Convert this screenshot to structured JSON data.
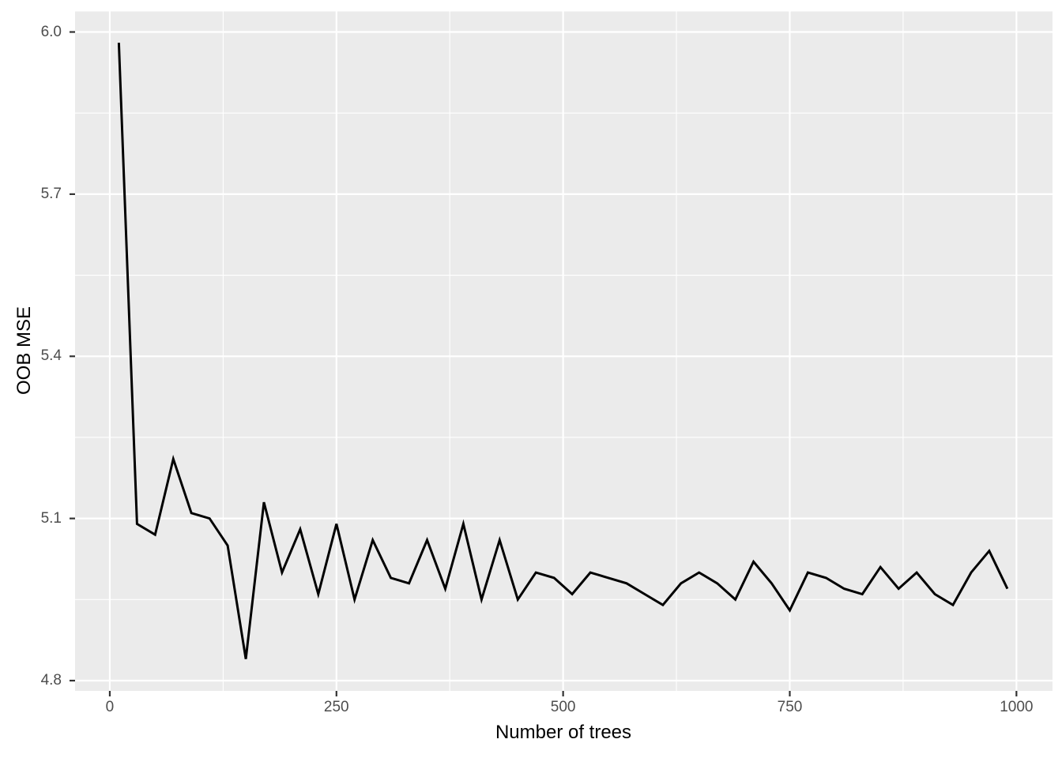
{
  "figure": {
    "background": "#FFFFFF"
  },
  "chart_data": {
    "type": "line",
    "title": "",
    "xlabel": "Number of trees",
    "ylabel": "OOB MSE",
    "legend_position": "none",
    "grid": true,
    "series": [
      {
        "name": "OOB MSE",
        "x": [
          10,
          30,
          50,
          70,
          90,
          110,
          130,
          150,
          170,
          190,
          210,
          230,
          250,
          270,
          290,
          310,
          330,
          350,
          370,
          390,
          410,
          430,
          450,
          470,
          490,
          510,
          530,
          550,
          570,
          590,
          610,
          630,
          650,
          670,
          690,
          710,
          730,
          750,
          770,
          790,
          810,
          830,
          850,
          870,
          890,
          910,
          930,
          950,
          970,
          990
        ],
        "y": [
          5.98,
          5.09,
          5.07,
          5.21,
          5.11,
          5.1,
          5.05,
          4.84,
          5.13,
          5.0,
          5.08,
          4.96,
          5.09,
          4.95,
          5.06,
          4.99,
          4.98,
          5.06,
          4.97,
          5.09,
          4.95,
          5.06,
          4.95,
          5.0,
          4.99,
          4.96,
          5.0,
          4.99,
          4.98,
          4.96,
          4.94,
          4.98,
          5.0,
          4.98,
          4.95,
          5.02,
          4.98,
          4.93,
          5.0,
          4.99,
          4.97,
          4.96,
          5.01,
          4.97,
          5.0,
          4.96,
          4.94,
          5.0,
          5.04,
          4.97
        ]
      }
    ],
    "x_axis": {
      "major_ticks": [
        0,
        250,
        500,
        750,
        1000
      ],
      "minor_ticks": [
        125,
        375,
        625,
        875
      ],
      "tick_labels": [
        "0",
        "250",
        "500",
        "750",
        "1000"
      ]
    },
    "y_axis": {
      "major_ticks": [
        4.8,
        5.1,
        5.4,
        5.7,
        6.0
      ],
      "minor_ticks": [
        4.95,
        5.25,
        5.55,
        5.85
      ],
      "tick_labels": [
        "4.8",
        "5.1",
        "5.4",
        "5.7",
        "6.0"
      ]
    },
    "xlim": [
      -38.3,
      1039.8
    ],
    "ylim": [
      4.781,
      6.038
    ],
    "colors": {
      "panel_background": "#EBEBEB",
      "grid": "#FFFFFF",
      "line": "#000000",
      "tick_text": "#4D4D4D",
      "tick_mark": "#333333",
      "axis_title": "#000000"
    }
  }
}
